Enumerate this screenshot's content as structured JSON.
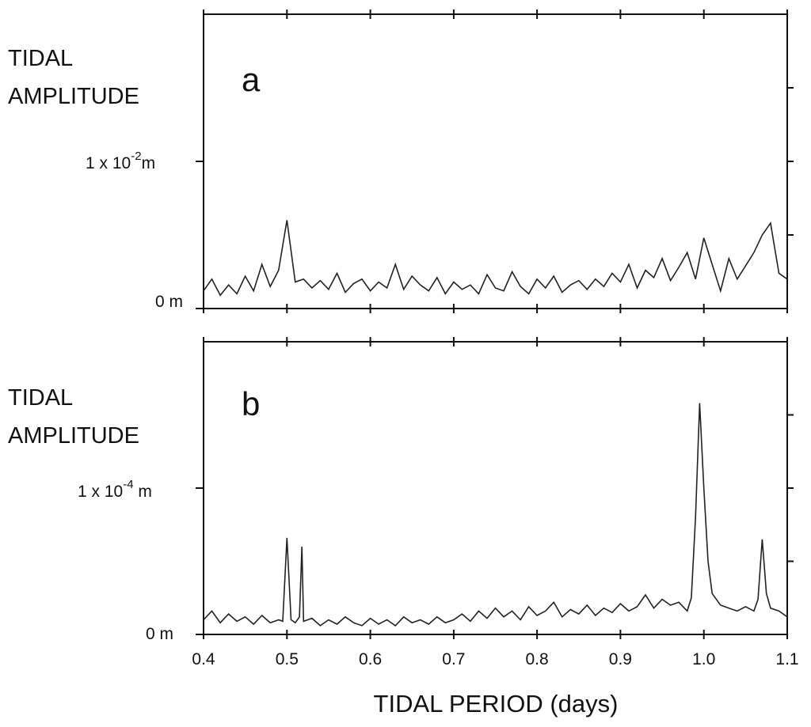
{
  "chart_data": [
    {
      "type": "line",
      "panel_label": "a",
      "ylabel_lines": [
        "TIDAL",
        "AMPLITUDE"
      ],
      "y_tick_labels": {
        "zero": "0 m",
        "mid_base": "1 x 10",
        "mid_exp": "-2",
        "mid_unit": "m"
      },
      "ylim": [
        0,
        0.02
      ],
      "xlim": [
        0.4,
        1.1
      ],
      "series": [
        {
          "name": "tidal amplitude",
          "x": [
            0.4,
            0.41,
            0.42,
            0.43,
            0.44,
            0.45,
            0.46,
            0.47,
            0.48,
            0.49,
            0.5,
            0.51,
            0.52,
            0.53,
            0.54,
            0.55,
            0.56,
            0.57,
            0.58,
            0.59,
            0.6,
            0.61,
            0.62,
            0.63,
            0.64,
            0.65,
            0.66,
            0.67,
            0.68,
            0.69,
            0.7,
            0.71,
            0.72,
            0.73,
            0.74,
            0.75,
            0.76,
            0.77,
            0.78,
            0.79,
            0.8,
            0.81,
            0.82,
            0.83,
            0.84,
            0.85,
            0.86,
            0.87,
            0.88,
            0.89,
            0.9,
            0.91,
            0.92,
            0.93,
            0.94,
            0.95,
            0.96,
            0.97,
            0.98,
            0.99,
            1.0,
            1.01,
            1.02,
            1.03,
            1.04,
            1.05,
            1.06,
            1.07,
            1.08,
            1.09,
            1.1
          ],
          "values": [
            0.0012,
            0.002,
            0.0009,
            0.0016,
            0.001,
            0.0022,
            0.0012,
            0.003,
            0.0015,
            0.0026,
            0.006,
            0.0018,
            0.002,
            0.0014,
            0.0019,
            0.0013,
            0.0024,
            0.0011,
            0.0017,
            0.002,
            0.0012,
            0.0018,
            0.0014,
            0.003,
            0.0013,
            0.0022,
            0.0016,
            0.0012,
            0.0021,
            0.001,
            0.0018,
            0.0013,
            0.0016,
            0.001,
            0.0023,
            0.0014,
            0.0012,
            0.0025,
            0.0015,
            0.001,
            0.002,
            0.0014,
            0.0022,
            0.0011,
            0.0016,
            0.0019,
            0.0013,
            0.002,
            0.0015,
            0.0024,
            0.0018,
            0.003,
            0.0014,
            0.0026,
            0.0021,
            0.0034,
            0.0019,
            0.0028,
            0.0038,
            0.002,
            0.0048,
            0.003,
            0.0012,
            0.0034,
            0.002,
            0.0029,
            0.0038,
            0.005,
            0.0058,
            0.0024,
            0.002
          ]
        }
      ]
    },
    {
      "type": "line",
      "panel_label": "b",
      "ylabel_lines": [
        "TIDAL",
        "AMPLITUDE"
      ],
      "y_tick_labels": {
        "zero": "0 m",
        "mid_base": "1 x 10",
        "mid_exp": "-4",
        "mid_unit": " m"
      },
      "ylim": [
        0,
        0.0002
      ],
      "xlim": [
        0.4,
        1.1
      ],
      "xlabel": "TIDAL PERIOD (days)",
      "x_tick_labels": [
        "0.4",
        "0.5",
        "0.6",
        "0.7",
        "0.8",
        "0.9",
        "1.0",
        "1.1"
      ],
      "series": [
        {
          "name": "tidal amplitude",
          "x": [
            0.4,
            0.41,
            0.42,
            0.43,
            0.44,
            0.45,
            0.46,
            0.47,
            0.48,
            0.49,
            0.495,
            0.5,
            0.505,
            0.51,
            0.515,
            0.518,
            0.52,
            0.53,
            0.54,
            0.55,
            0.56,
            0.57,
            0.58,
            0.59,
            0.6,
            0.61,
            0.62,
            0.63,
            0.64,
            0.65,
            0.66,
            0.67,
            0.68,
            0.69,
            0.7,
            0.71,
            0.72,
            0.73,
            0.74,
            0.75,
            0.76,
            0.77,
            0.78,
            0.79,
            0.8,
            0.81,
            0.82,
            0.83,
            0.84,
            0.85,
            0.86,
            0.87,
            0.88,
            0.89,
            0.9,
            0.91,
            0.92,
            0.93,
            0.94,
            0.95,
            0.96,
            0.97,
            0.98,
            0.985,
            0.99,
            0.995,
            1.0,
            1.005,
            1.01,
            1.02,
            1.03,
            1.04,
            1.05,
            1.06,
            1.065,
            1.07,
            1.075,
            1.08,
            1.09,
            1.1
          ],
          "values": [
            1e-05,
            1.6e-05,
            8e-06,
            1.4e-05,
            9e-06,
            1.2e-05,
            7e-06,
            1.3e-05,
            8e-06,
            1e-05,
            9e-06,
            6.6e-05,
            1e-05,
            8e-06,
            1.2e-05,
            6e-05,
            9e-06,
            1.1e-05,
            6e-06,
            1e-05,
            7e-06,
            1.2e-05,
            8e-06,
            6e-06,
            1.1e-05,
            7e-06,
            1e-05,
            6e-06,
            1.2e-05,
            8e-06,
            1e-05,
            7e-06,
            1.2e-05,
            8e-06,
            1e-05,
            1.4e-05,
            9e-06,
            1.6e-05,
            1.1e-05,
            1.8e-05,
            1.2e-05,
            1.6e-05,
            1e-05,
            1.9e-05,
            1.3e-05,
            1.6e-05,
            2.2e-05,
            1.2e-05,
            1.7e-05,
            1.4e-05,
            2e-05,
            1.3e-05,
            1.8e-05,
            1.5e-05,
            2.1e-05,
            1.6e-05,
            1.9e-05,
            2.7e-05,
            1.8e-05,
            2.4e-05,
            2e-05,
            2.2e-05,
            1.6e-05,
            2.5e-05,
            8e-05,
            0.000158,
            0.0001,
            5e-05,
            2.8e-05,
            2e-05,
            1.8e-05,
            1.6e-05,
            1.9e-05,
            1.6e-05,
            2.4e-05,
            6.5e-05,
            2.8e-05,
            1.8e-05,
            1.6e-05,
            1.2e-05
          ]
        }
      ]
    }
  ]
}
